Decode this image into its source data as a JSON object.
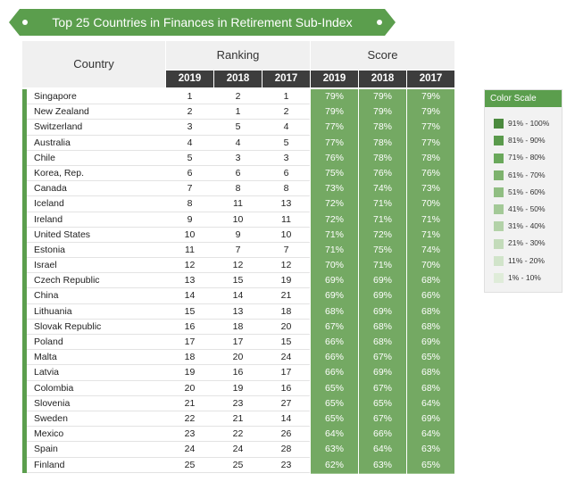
{
  "title": "Top 25 Countries in Finances in Retirement Sub-Index",
  "headers": {
    "country": "Country",
    "ranking": "Ranking",
    "score": "Score",
    "years": [
      "2019",
      "2018",
      "2017"
    ]
  },
  "legend": {
    "title": "Color Scale",
    "items": [
      {
        "label": "91% - 100%",
        "color": "#4b8a3e"
      },
      {
        "label": "81% - 90%",
        "color": "#5a9a4c"
      },
      {
        "label": "71% - 80%",
        "color": "#6aa85b"
      },
      {
        "label": "61% - 70%",
        "color": "#7db26d"
      },
      {
        "label": "51% - 60%",
        "color": "#90be82"
      },
      {
        "label": "41% - 50%",
        "color": "#a3c997"
      },
      {
        "label": "31% - 40%",
        "color": "#b3d2a8"
      },
      {
        "label": "21% - 30%",
        "color": "#c3dbba"
      },
      {
        "label": "11% - 20%",
        "color": "#d1e4ca"
      },
      {
        "label": "1% - 10%",
        "color": "#dfecd9"
      }
    ]
  },
  "chart_data": {
    "type": "table",
    "title": "Top 25 Countries in Finances in Retirement Sub-Index",
    "columns": [
      "Country",
      "Ranking 2019",
      "Ranking 2018",
      "Ranking 2017",
      "Score 2019",
      "Score 2018",
      "Score 2017"
    ],
    "rows": [
      {
        "country": "Singapore",
        "rank": [
          "1",
          "2",
          "1"
        ],
        "score": [
          "79%",
          "79%",
          "79%"
        ]
      },
      {
        "country": "New Zealand",
        "rank": [
          "2",
          "1",
          "2"
        ],
        "score": [
          "79%",
          "79%",
          "79%"
        ]
      },
      {
        "country": "Switzerland",
        "rank": [
          "3",
          "5",
          "4"
        ],
        "score": [
          "77%",
          "78%",
          "77%"
        ]
      },
      {
        "country": "Australia",
        "rank": [
          "4",
          "4",
          "5"
        ],
        "score": [
          "77%",
          "78%",
          "77%"
        ]
      },
      {
        "country": "Chile",
        "rank": [
          "5",
          "3",
          "3"
        ],
        "score": [
          "76%",
          "78%",
          "78%"
        ]
      },
      {
        "country": "Korea, Rep.",
        "rank": [
          "6",
          "6",
          "6"
        ],
        "score": [
          "75%",
          "76%",
          "76%"
        ]
      },
      {
        "country": "Canada",
        "rank": [
          "7",
          "8",
          "8"
        ],
        "score": [
          "73%",
          "74%",
          "73%"
        ]
      },
      {
        "country": "Iceland",
        "rank": [
          "8",
          "11",
          "13"
        ],
        "score": [
          "72%",
          "71%",
          "70%"
        ]
      },
      {
        "country": "Ireland",
        "rank": [
          "9",
          "10",
          "11"
        ],
        "score": [
          "72%",
          "71%",
          "71%"
        ]
      },
      {
        "country": "United States",
        "rank": [
          "10",
          "9",
          "10"
        ],
        "score": [
          "71%",
          "72%",
          "71%"
        ]
      },
      {
        "country": "Estonia",
        "rank": [
          "11",
          "7",
          "7"
        ],
        "score": [
          "71%",
          "75%",
          "74%"
        ]
      },
      {
        "country": "Israel",
        "rank": [
          "12",
          "12",
          "12"
        ],
        "score": [
          "70%",
          "71%",
          "70%"
        ]
      },
      {
        "country": "Czech Republic",
        "rank": [
          "13",
          "15",
          "19"
        ],
        "score": [
          "69%",
          "69%",
          "68%"
        ]
      },
      {
        "country": "China",
        "rank": [
          "14",
          "14",
          "21"
        ],
        "score": [
          "69%",
          "69%",
          "66%"
        ]
      },
      {
        "country": "Lithuania",
        "rank": [
          "15",
          "13",
          "18"
        ],
        "score": [
          "68%",
          "69%",
          "68%"
        ]
      },
      {
        "country": "Slovak Republic",
        "rank": [
          "16",
          "18",
          "20"
        ],
        "score": [
          "67%",
          "68%",
          "68%"
        ]
      },
      {
        "country": "Poland",
        "rank": [
          "17",
          "17",
          "15"
        ],
        "score": [
          "66%",
          "68%",
          "69%"
        ]
      },
      {
        "country": "Malta",
        "rank": [
          "18",
          "20",
          "24"
        ],
        "score": [
          "66%",
          "67%",
          "65%"
        ]
      },
      {
        "country": "Latvia",
        "rank": [
          "19",
          "16",
          "17"
        ],
        "score": [
          "66%",
          "69%",
          "68%"
        ]
      },
      {
        "country": "Colombia",
        "rank": [
          "20",
          "19",
          "16"
        ],
        "score": [
          "65%",
          "67%",
          "68%"
        ]
      },
      {
        "country": "Slovenia",
        "rank": [
          "21",
          "23",
          "27"
        ],
        "score": [
          "65%",
          "65%",
          "64%"
        ]
      },
      {
        "country": "Sweden",
        "rank": [
          "22",
          "21",
          "14"
        ],
        "score": [
          "65%",
          "67%",
          "69%"
        ]
      },
      {
        "country": "Mexico",
        "rank": [
          "23",
          "22",
          "26"
        ],
        "score": [
          "64%",
          "66%",
          "64%"
        ]
      },
      {
        "country": "Spain",
        "rank": [
          "24",
          "24",
          "28"
        ],
        "score": [
          "63%",
          "64%",
          "63%"
        ]
      },
      {
        "country": "Finland",
        "rank": [
          "25",
          "25",
          "23"
        ],
        "score": [
          "62%",
          "63%",
          "65%"
        ]
      }
    ]
  }
}
